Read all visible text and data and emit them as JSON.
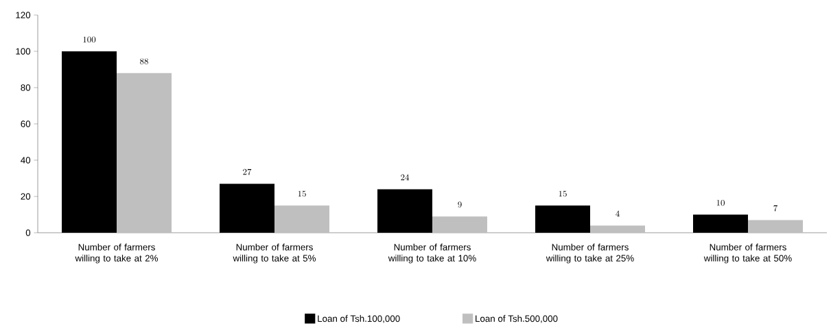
{
  "chart_data": {
    "type": "bar",
    "categories": [
      "Number of farmers willing to take at 2%",
      "Number of farmers willing to take at 5%",
      "Number of farmers willing to take at 10%",
      "Number of farmers willing to take at 25%",
      "Number of farmers willing to take at 50%"
    ],
    "series": [
      {
        "name": "Loan of Tsh.100,000",
        "color": "#000000",
        "values": [
          100,
          27,
          24,
          15,
          10
        ]
      },
      {
        "name": "Loan of Tsh.500,000",
        "color": "#bfbfbf",
        "values": [
          88,
          15,
          9,
          4,
          7
        ]
      }
    ],
    "ylim": [
      0,
      120
    ],
    "yticks": [
      0,
      20,
      40,
      60,
      80,
      100,
      120
    ],
    "data_labels": true,
    "legend": "bottom",
    "grid": false
  }
}
